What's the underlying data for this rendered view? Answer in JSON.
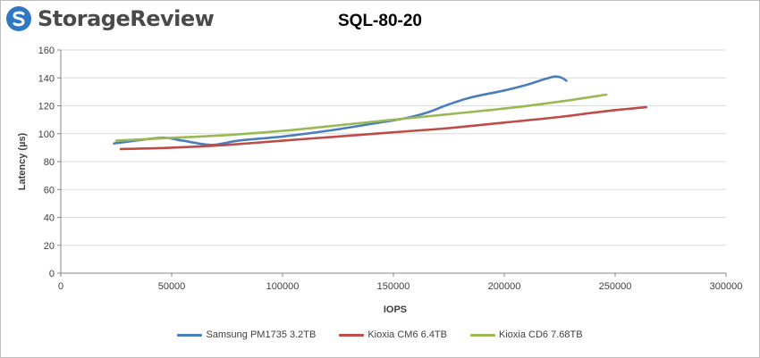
{
  "logo": {
    "text": "StorageReview"
  },
  "chart_data": {
    "type": "line",
    "title": "SQL-80-20",
    "xlabel": "IOPS",
    "ylabel": "Latency (µs)",
    "xlim": [
      0,
      300000
    ],
    "ylim": [
      0,
      160
    ],
    "xticks": [
      0,
      50000,
      100000,
      150000,
      200000,
      250000,
      300000
    ],
    "yticks": [
      0,
      20,
      40,
      60,
      80,
      100,
      120,
      140,
      160
    ],
    "grid": "horizontal",
    "legend_position": "bottom",
    "series": [
      {
        "name": "Samsung PM1735 3.2TB",
        "color": "#4a7ebb",
        "points": [
          [
            24000,
            93
          ],
          [
            45000,
            97
          ],
          [
            55000,
            95
          ],
          [
            68000,
            92
          ],
          [
            80000,
            95
          ],
          [
            100000,
            98
          ],
          [
            120000,
            102
          ],
          [
            140000,
            107
          ],
          [
            155000,
            111
          ],
          [
            165000,
            115
          ],
          [
            175000,
            121
          ],
          [
            185000,
            126
          ],
          [
            200000,
            131
          ],
          [
            210000,
            135
          ],
          [
            218000,
            139
          ],
          [
            223000,
            141
          ],
          [
            226000,
            140
          ],
          [
            228000,
            138
          ]
        ]
      },
      {
        "name": "Kioxia CM6 6.4TB",
        "color": "#be4b48",
        "points": [
          [
            27000,
            89
          ],
          [
            50000,
            90
          ],
          [
            75000,
            92
          ],
          [
            100000,
            95
          ],
          [
            125000,
            98
          ],
          [
            150000,
            101
          ],
          [
            175000,
            104
          ],
          [
            200000,
            108
          ],
          [
            225000,
            112
          ],
          [
            245000,
            116
          ],
          [
            264000,
            119
          ]
        ]
      },
      {
        "name": "Kioxia CD6 7.68TB",
        "color": "#98b954",
        "points": [
          [
            25000,
            95
          ],
          [
            50000,
            97
          ],
          [
            75000,
            99
          ],
          [
            100000,
            102
          ],
          [
            125000,
            106
          ],
          [
            150000,
            110
          ],
          [
            175000,
            114
          ],
          [
            200000,
            118
          ],
          [
            225000,
            123
          ],
          [
            246000,
            128
          ]
        ]
      }
    ]
  }
}
